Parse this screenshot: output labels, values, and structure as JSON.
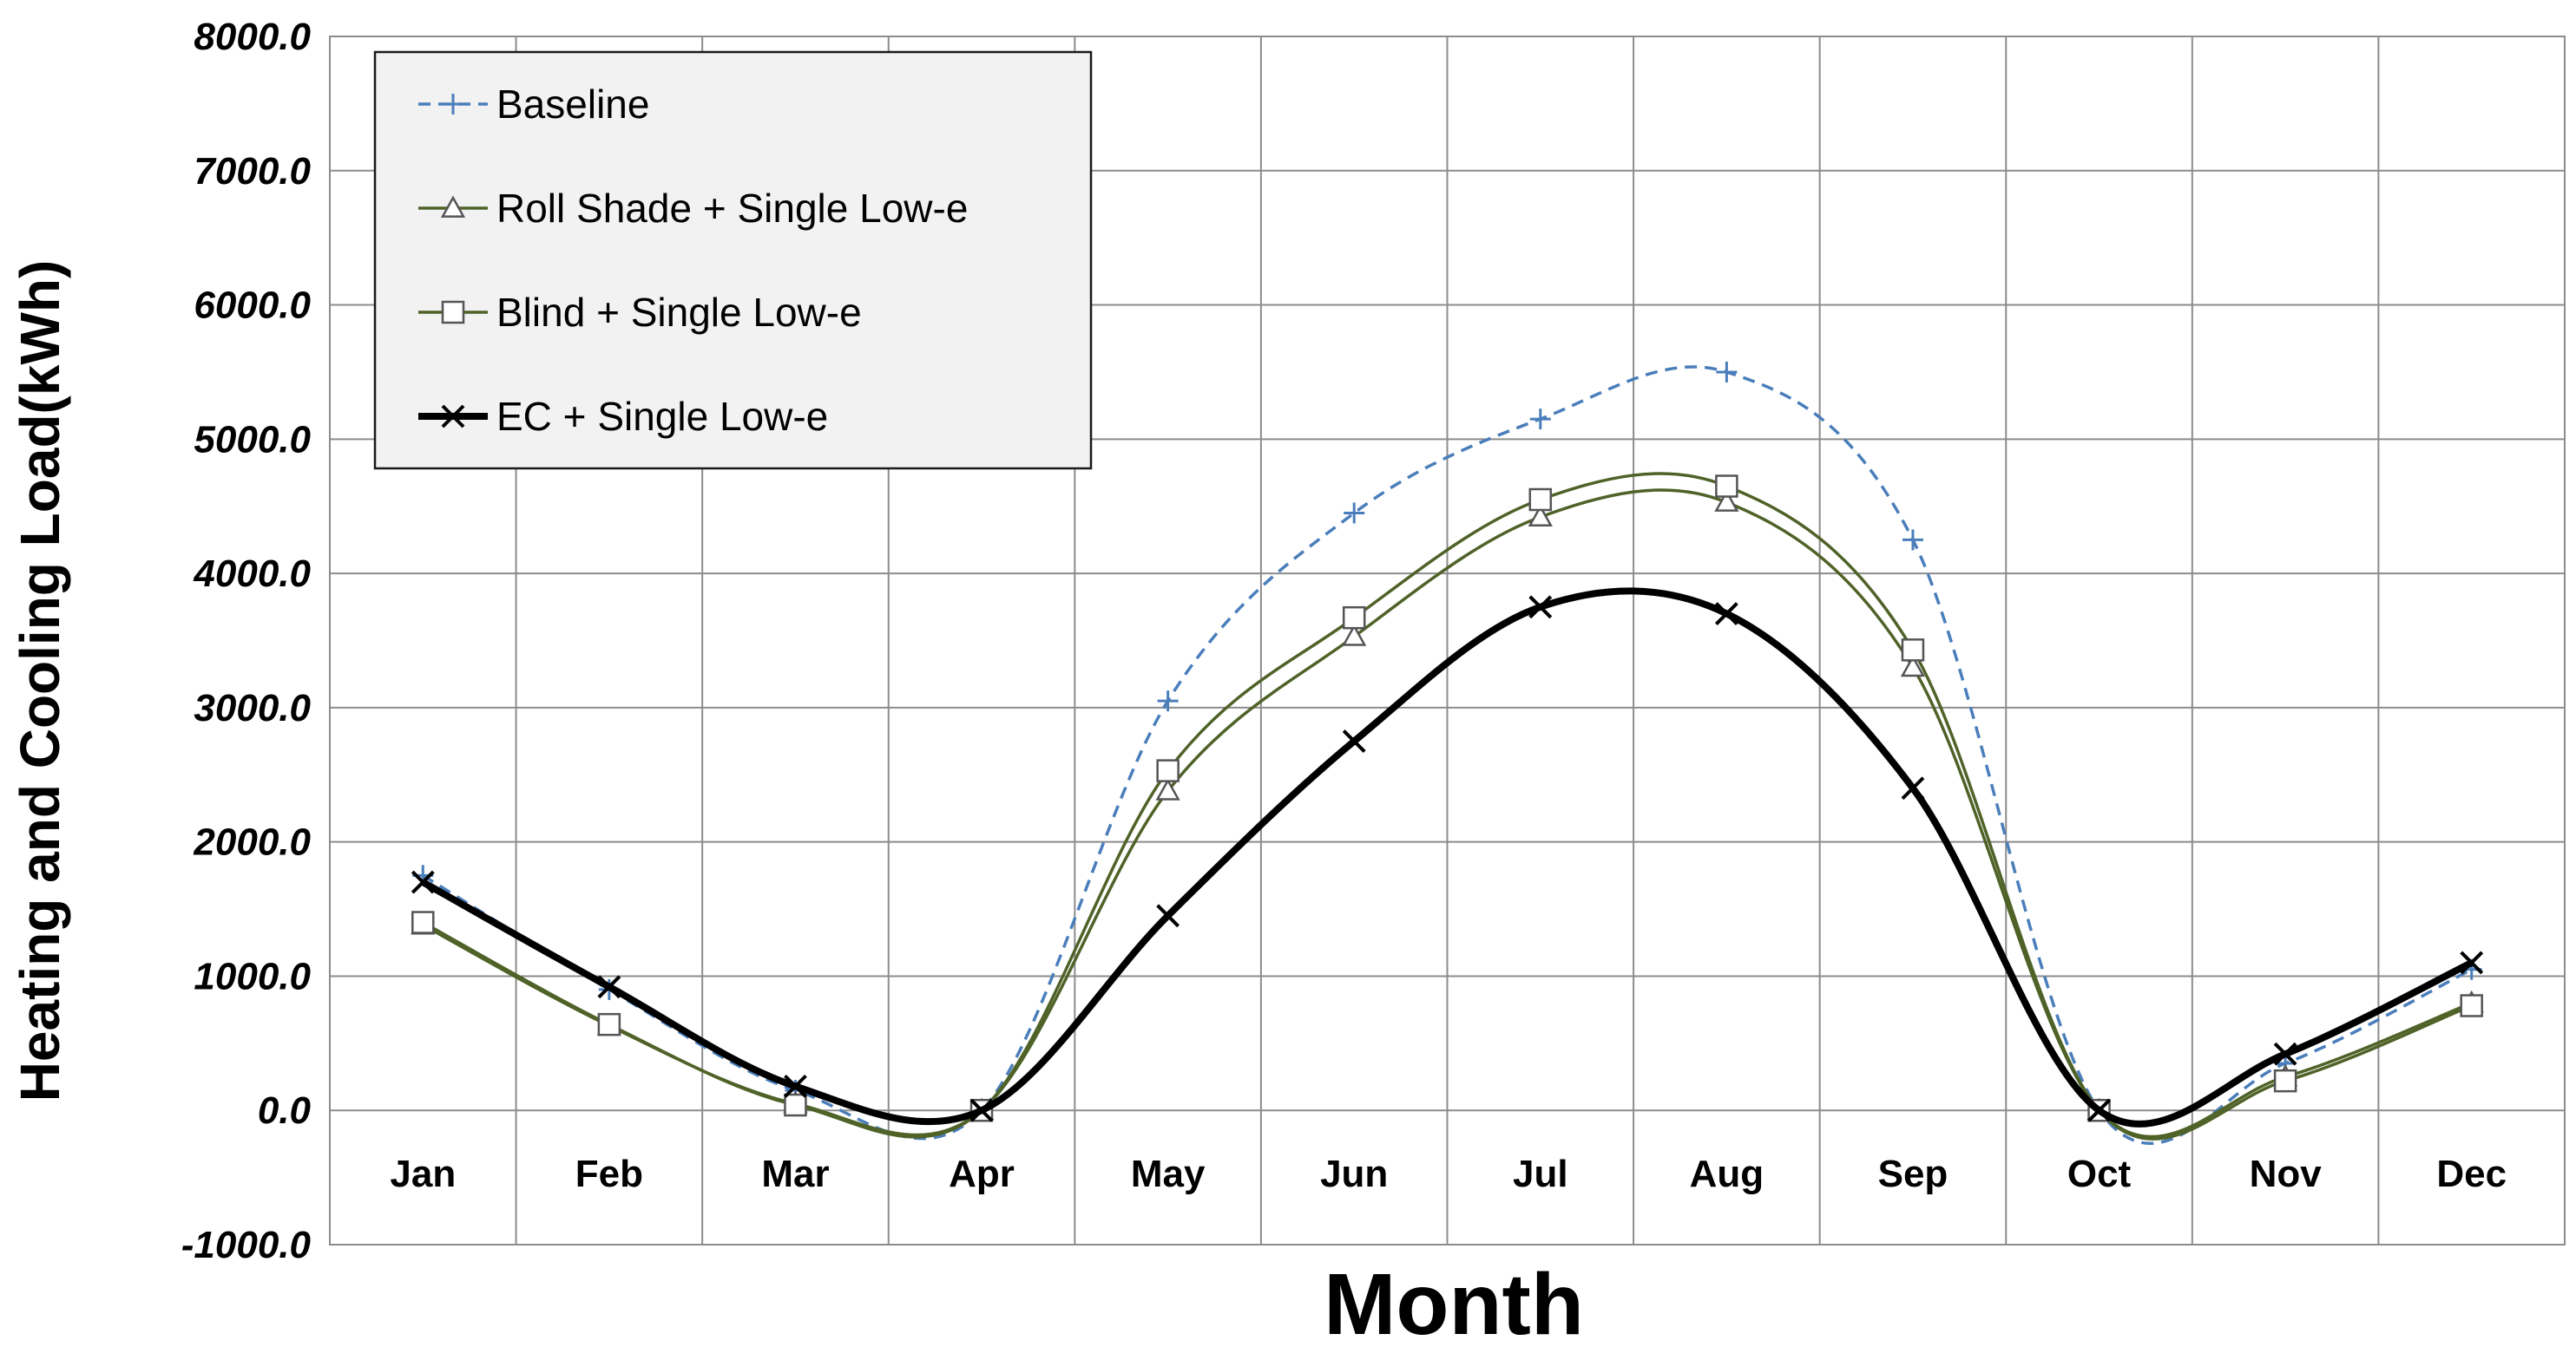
{
  "chart_data": {
    "type": "line",
    "xlabel": "Month",
    "ylabel": "Heating and Cooling Load(kWh)",
    "categories": [
      "Jan",
      "Feb",
      "Mar",
      "Apr",
      "May",
      "Jun",
      "Jul",
      "Aug",
      "Sep",
      "Oct",
      "Nov",
      "Dec"
    ],
    "ylim": [
      -1000,
      8000
    ],
    "yticks": [
      "8000.0",
      "7000.0",
      "6000.0",
      "5000.0",
      "4000.0",
      "3000.0",
      "2000.0",
      "1000.0",
      "0.0",
      "-1000.0"
    ],
    "grid": true,
    "legend_position": "top-left",
    "series": [
      {
        "name": "Baseline",
        "values": [
          1750,
          900,
          150,
          0,
          3050,
          4450,
          5150,
          5500,
          4250,
          0,
          350,
          1050
        ],
        "color": "#4a7ebb",
        "dash": true,
        "marker": "plus"
      },
      {
        "name": "Roll Shade + Single Low-e",
        "values": [
          1380,
          630,
          50,
          0,
          2380,
          3530,
          4420,
          4530,
          3300,
          0,
          250,
          800
        ],
        "color": "#4f6228",
        "dash": false,
        "marker": "triangle"
      },
      {
        "name": "Blind + Single Low-e",
        "values": [
          1400,
          640,
          40,
          0,
          2530,
          3670,
          4550,
          4650,
          3430,
          0,
          220,
          780
        ],
        "color": "#4f6228",
        "dash": false,
        "marker": "square"
      },
      {
        "name": "EC + Single Low-e",
        "values": [
          1700,
          920,
          180,
          0,
          1450,
          2750,
          3750,
          3700,
          2400,
          0,
          420,
          1100
        ],
        "color": "#000000",
        "dash": false,
        "marker": "x"
      }
    ]
  }
}
